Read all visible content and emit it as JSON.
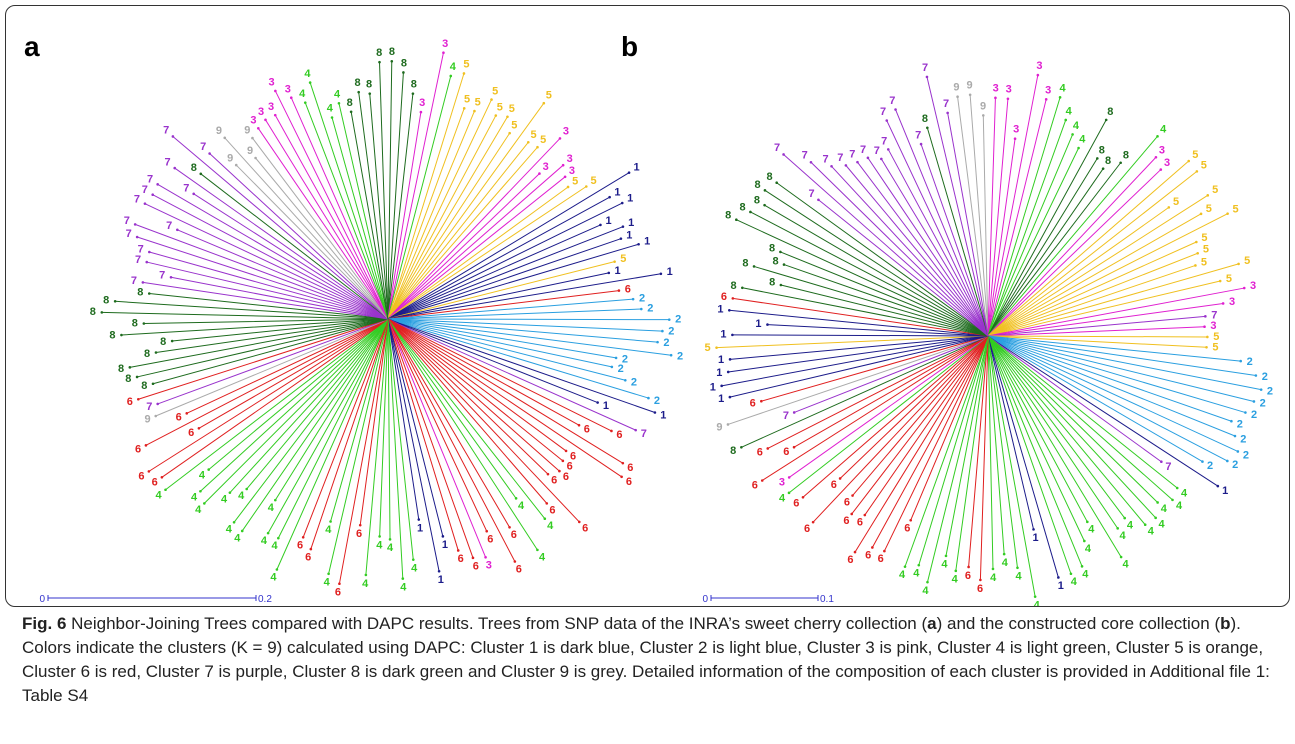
{
  "figure": {
    "cluster_colors": {
      "1": "#1c1c8a",
      "2": "#2a9fe0",
      "3": "#e020d0",
      "4": "#33cc22",
      "5": "#f0c020",
      "6": "#e02020",
      "7": "#9933cc",
      "8": "#1e6b1e",
      "9": "#aaaaaa"
    },
    "panels": [
      {
        "label": "a",
        "scale_start": "0",
        "scale_end": "0.2",
        "leaves": [
          "8",
          "8",
          "8",
          "8",
          "8",
          "8",
          "3",
          "3",
          "4",
          "5",
          "5",
          "5",
          "5",
          "5",
          "5",
          "5",
          "5",
          "5",
          "5",
          "3",
          "3",
          "3",
          "3",
          "5",
          "5",
          "1",
          "1",
          "1",
          "1",
          "1",
          "1",
          "1",
          "5",
          "1",
          "1",
          "6",
          "2",
          "2",
          "2",
          "2",
          "2",
          "2",
          "2",
          "2",
          "2",
          "2",
          "1",
          "1",
          "7",
          "6",
          "6",
          "6",
          "6",
          "6",
          "6",
          "6",
          "6",
          "6",
          "6",
          "4",
          "4",
          "4",
          "6",
          "6",
          "6",
          "3",
          "6",
          "6",
          "1",
          "1",
          "1",
          "4",
          "4",
          "4",
          "4",
          "4",
          "6",
          "6",
          "4",
          "4",
          "6",
          "6",
          "4",
          "4",
          "4",
          "4",
          "4",
          "4",
          "4",
          "4",
          "4",
          "4",
          "4",
          "4",
          "6",
          "6",
          "6",
          "6",
          "6",
          "9",
          "7",
          "6",
          "8",
          "8",
          "8",
          "8",
          "8",
          "8",
          "8",
          "8",
          "8",
          "8",
          "7",
          "7",
          "7",
          "7",
          "7",
          "7",
          "7",
          "7",
          "7",
          "7",
          "7",
          "7",
          "8",
          "7",
          "7",
          "9",
          "9",
          "9",
          "9",
          "3",
          "3",
          "3",
          "3",
          "3",
          "4",
          "4",
          "4",
          "4",
          "8"
        ]
      },
      {
        "label": "b",
        "scale_start": "0",
        "scale_end": "0.1",
        "leaves": [
          "9",
          "9",
          "9",
          "3",
          "3",
          "3",
          "3",
          "3",
          "4",
          "4",
          "4",
          "4",
          "8",
          "8",
          "8",
          "8",
          "4",
          "3",
          "3",
          "5",
          "5",
          "5",
          "5",
          "5",
          "5",
          "5",
          "5",
          "5",
          "5",
          "5",
          "3",
          "3",
          "7",
          "3",
          "5",
          "5",
          "2",
          "2",
          "2",
          "2",
          "2",
          "2",
          "2",
          "2",
          "2",
          "2",
          "1",
          "7",
          "4",
          "4",
          "4",
          "4",
          "4",
          "4",
          "4",
          "4",
          "4",
          "4",
          "4",
          "4",
          "1",
          "1",
          "4",
          "4",
          "4",
          "4",
          "6",
          "6",
          "4",
          "4",
          "4",
          "4",
          "4",
          "6",
          "6",
          "6",
          "6",
          "6",
          "6",
          "6",
          "6",
          "6",
          "6",
          "4",
          "3",
          "6",
          "6",
          "6",
          "8",
          "7",
          "9",
          "6",
          "1",
          "1",
          "1",
          "1",
          "5",
          "1",
          "1",
          "1",
          "6",
          "8",
          "8",
          "8",
          "8",
          "8",
          "8",
          "8",
          "8",
          "8",
          "8",
          "7",
          "7",
          "7",
          "7",
          "7",
          "7",
          "7",
          "7",
          "7",
          "7",
          "7",
          "7",
          "8",
          "7",
          "7"
        ]
      }
    ]
  },
  "caption": [
    {
      "text": "Fig. 6",
      "bold": true
    },
    {
      "text": " Neighbor-Joining Trees compared with DAPC results. Trees from SNP data of the INRA’s sweet cherry collection (",
      "bold": false
    },
    {
      "text": "a",
      "bold": true
    },
    {
      "text": ") and the constructed core collection (",
      "bold": false
    },
    {
      "text": "b",
      "bold": true
    },
    {
      "text": "). Colors indicate the clusters (K = 9) calculated using DAPC: Cluster 1 is dark blue, Cluster 2 is light blue, Cluster 3 is pink, Cluster 4 is light green, Cluster 5 is orange, Cluster 6 is red, Cluster 7 is purple, Cluster 8 is dark green and Cluster 9 is grey. Detailed information of the composition of each cluster is provided in Additional file 1: Table S4",
      "bold": false
    }
  ]
}
